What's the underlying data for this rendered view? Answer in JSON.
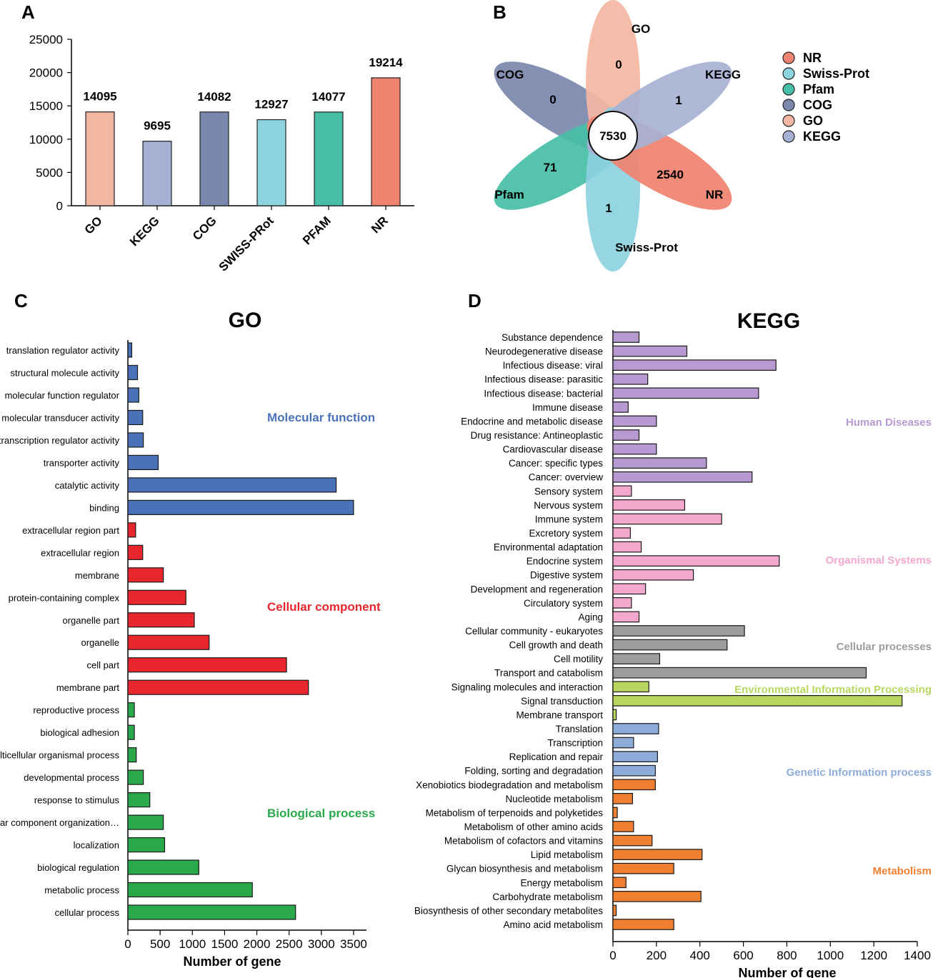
{
  "panels": {
    "a": "A",
    "b": "B",
    "c": "C",
    "d": "D"
  },
  "colors": {
    "go": "#f3b6a2",
    "kegg": "#a7b1d3",
    "cog": "#7a88ad",
    "swissprot": "#8dd3e0",
    "pfam": "#47bea6",
    "nr": "#f08270",
    "mf": "#4a72b8",
    "cc": "#e8262e",
    "bp": "#2aa94a",
    "human_diseases": "#b79ad1",
    "organismal_systems": "#f4a8ce",
    "cellular_processes": "#9d9d9d",
    "environmental": "#b9d760",
    "genetic": "#8dacd9",
    "metabolism": "#ef7f31"
  },
  "chart_data": [
    {
      "id": "A",
      "type": "bar",
      "title": "",
      "xlabel": "",
      "ylabel": "",
      "categories": [
        "GO",
        "KEGG",
        "COG",
        "SWISS-PRot",
        "PFAM",
        "NR"
      ],
      "values": [
        14095,
        9695,
        14082,
        12927,
        14077,
        19214
      ],
      "value_labels": [
        "14095",
        "9695",
        "14082",
        "12927",
        "14077",
        "19214"
      ],
      "bar_colors": [
        "#f3b6a2",
        "#a7b1d3",
        "#7a88ad",
        "#8dd3e0",
        "#47bea6",
        "#f08270"
      ],
      "ylim": [
        0,
        25000
      ],
      "yticks": [
        "0",
        "5000",
        "10000",
        "15000",
        "20000",
        "25000"
      ]
    },
    {
      "id": "B",
      "type": "venn",
      "center": "7530",
      "petals": [
        {
          "name": "GO",
          "value": "0",
          "color": "#f3b6a2"
        },
        {
          "name": "KEGG",
          "value": "1",
          "color": "#a7b1d3"
        },
        {
          "name": "NR",
          "value": "2540",
          "color": "#f08270"
        },
        {
          "name": "Swiss-Prot",
          "value": "1",
          "color": "#8dd3e0"
        },
        {
          "name": "Pfam",
          "value": "71",
          "color": "#47bea6"
        },
        {
          "name": "COG",
          "value": "0",
          "color": "#7a88ad"
        }
      ],
      "legend": [
        {
          "name": "NR",
          "color": "#f08270"
        },
        {
          "name": "Swiss-Prot",
          "color": "#8dd3e0"
        },
        {
          "name": "Pfam",
          "color": "#47bea6"
        },
        {
          "name": "COG",
          "color": "#7a88ad"
        },
        {
          "name": "GO",
          "color": "#f3b6a2"
        },
        {
          "name": "KEGG",
          "color": "#a7b1d3"
        }
      ]
    },
    {
      "id": "C",
      "type": "bar",
      "orientation": "horizontal",
      "title": "GO",
      "xlabel": "Number of gene",
      "xlim": [
        0,
        3700
      ],
      "xticks": [
        "0",
        "500",
        "1000",
        "1500",
        "2000",
        "2500",
        "3000",
        "3500"
      ],
      "groups": [
        {
          "name": "Molecular function",
          "color": "#4a72b8",
          "items": [
            {
              "label": "translation regulator activity",
              "value": 60
            },
            {
              "label": "structural molecule activity",
              "value": 150
            },
            {
              "label": "molecular function regulator",
              "value": 170
            },
            {
              "label": "molecular transducer activity",
              "value": 230
            },
            {
              "label": "transcription regulator activity",
              "value": 240
            },
            {
              "label": "transporter activity",
              "value": 470
            },
            {
              "label": "catalytic activity",
              "value": 3230
            },
            {
              "label": "binding",
              "value": 3500
            }
          ]
        },
        {
          "name": "Cellular component",
          "color": "#e8262e",
          "items": [
            {
              "label": "extracellular region part",
              "value": 120
            },
            {
              "label": "extracellular region",
              "value": 230
            },
            {
              "label": "membrane",
              "value": 550
            },
            {
              "label": "protein-containing complex",
              "value": 900
            },
            {
              "label": "organelle part",
              "value": 1030
            },
            {
              "label": "organelle",
              "value": 1260
            },
            {
              "label": "cell part",
              "value": 2460
            },
            {
              "label": "membrane part",
              "value": 2800
            }
          ]
        },
        {
          "name": "Biological process",
          "color": "#2aa94a",
          "items": [
            {
              "label": "reproductive process",
              "value": 100
            },
            {
              "label": "biological adhesion",
              "value": 100
            },
            {
              "label": "multicellular organismal process",
              "value": 130
            },
            {
              "label": "developmental process",
              "value": 240
            },
            {
              "label": "response to stimulus",
              "value": 340
            },
            {
              "label": "cellular component organization…",
              "value": 550
            },
            {
              "label": "localization",
              "value": 570
            },
            {
              "label": "biological regulation",
              "value": 1100
            },
            {
              "label": "metabolic process",
              "value": 1930
            },
            {
              "label": "cellular process",
              "value": 2600
            }
          ]
        }
      ]
    },
    {
      "id": "D",
      "type": "bar",
      "orientation": "horizontal",
      "title": "KEGG",
      "xlabel": "Number of gene",
      "xlim": [
        0,
        1400
      ],
      "xticks": [
        "0",
        "200",
        "400",
        "600",
        "800",
        "1000",
        "1200",
        "1400"
      ],
      "groups": [
        {
          "name": "Human Diseases",
          "color": "#b79ad1",
          "items": [
            {
              "label": "Substance dependence",
              "value": 120
            },
            {
              "label": "Neurodegenerative disease",
              "value": 340
            },
            {
              "label": "Infectious disease: viral",
              "value": 750
            },
            {
              "label": "Infectious disease: parasitic",
              "value": 160
            },
            {
              "label": "Infectious disease: bacterial",
              "value": 670
            },
            {
              "label": "Immune disease",
              "value": 70
            },
            {
              "label": "Endocrine and metabolic disease",
              "value": 200
            },
            {
              "label": "Drug resistance: Antineoplastic",
              "value": 120
            },
            {
              "label": "Cardiovascular disease",
              "value": 200
            },
            {
              "label": "Cancer: specific types",
              "value": 430
            },
            {
              "label": "Cancer: overview",
              "value": 640
            }
          ]
        },
        {
          "name": "Organismal Systems",
          "color": "#f4a8ce",
          "items": [
            {
              "label": "Sensory system",
              "value": 85
            },
            {
              "label": "Nervous system",
              "value": 330
            },
            {
              "label": "Immune system",
              "value": 500
            },
            {
              "label": "Excretory system",
              "value": 80
            },
            {
              "label": "Environmental adaptation",
              "value": 130
            },
            {
              "label": "Endocrine system",
              "value": 765
            },
            {
              "label": "Digestive system",
              "value": 370
            },
            {
              "label": "Development and regeneration",
              "value": 150
            },
            {
              "label": "Circulatory system",
              "value": 85
            },
            {
              "label": "Aging",
              "value": 120
            }
          ]
        },
        {
          "name": "Cellular processes",
          "color": "#9d9d9d",
          "items": [
            {
              "label": "Cellular community - eukaryotes",
              "value": 605
            },
            {
              "label": "Cell growth and death",
              "value": 525
            },
            {
              "label": "Cell motility",
              "value": 215
            },
            {
              "label": "Transport and catabolism",
              "value": 1165
            }
          ]
        },
        {
          "name": "Environmental Information Processing",
          "color": "#b9d760",
          "items": [
            {
              "label": "Signaling molecules and interaction",
              "value": 165
            },
            {
              "label": "Signal transduction",
              "value": 1330
            },
            {
              "label": "Membrane transport",
              "value": 15
            }
          ]
        },
        {
          "name": "Genetic Information process",
          "color": "#8dacd9",
          "items": [
            {
              "label": "Translation",
              "value": 210
            },
            {
              "label": "Transcription",
              "value": 95
            },
            {
              "label": "Replication and repair",
              "value": 205
            },
            {
              "label": "Folding, sorting and degradation",
              "value": 195
            }
          ]
        },
        {
          "name": "Metabolism",
          "color": "#ef7f31",
          "items": [
            {
              "label": "Xenobiotics biodegradation and metabolism",
              "value": 195
            },
            {
              "label": "Nucleotide metabolism",
              "value": 90
            },
            {
              "label": "Metabolism of terpenoids and polyketides",
              "value": 20
            },
            {
              "label": "Metabolism of other amino acids",
              "value": 95
            },
            {
              "label": "Metabolism of cofactors and vitamins",
              "value": 180
            },
            {
              "label": "Lipid metabolism",
              "value": 410
            },
            {
              "label": "Glycan biosynthesis and metabolism",
              "value": 280
            },
            {
              "label": "Energy metabolism",
              "value": 60
            },
            {
              "label": "Carbohydrate metabolism",
              "value": 405
            },
            {
              "label": "Biosynthesis of other secondary metabolites",
              "value": 15
            },
            {
              "label": "Amino acid metabolism",
              "value": 280
            }
          ]
        }
      ]
    }
  ]
}
